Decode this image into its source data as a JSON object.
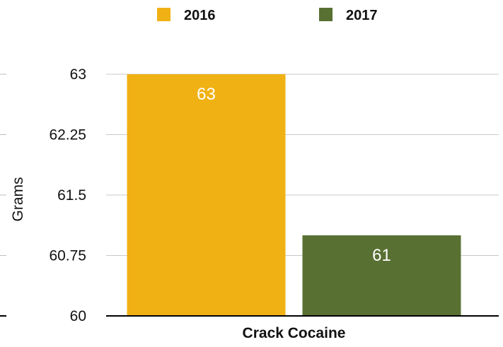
{
  "chart_data": {
    "type": "bar",
    "categories": [
      "Crack Cocaine"
    ],
    "series": [
      {
        "name": "2016",
        "values": [
          63
        ],
        "color": "#f0b114"
      },
      {
        "name": "2017",
        "values": [
          61
        ],
        "color": "#587032"
      }
    ],
    "ylabel": "Grams",
    "ylim": [
      60,
      63
    ],
    "yticks": [
      "63",
      "62.25",
      "61.5",
      "60.75",
      "60"
    ],
    "ytick_values": [
      63,
      62.25,
      61.5,
      60.75,
      60
    ],
    "data_labels": [
      "63",
      "61"
    ],
    "grid": true,
    "legend_position": "top"
  }
}
